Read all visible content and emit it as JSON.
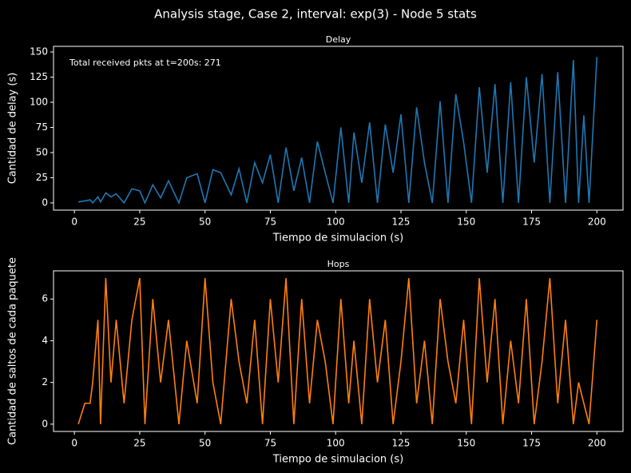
{
  "title": "Analysis stage, Case 2, interval: exp(3) - Node 5 stats",
  "chart_data": [
    {
      "type": "line",
      "title": "Delay",
      "annotation": "Total received pkts at t=200s: 271",
      "x_label": "Tiempo de simulacion (s)",
      "y_label": "Cantidad de delay (s)",
      "x": [
        1.5,
        4,
        6,
        7,
        9,
        10,
        12,
        14,
        16,
        19,
        22,
        25,
        27,
        30,
        33,
        36,
        40,
        43,
        47,
        50,
        53,
        56,
        60,
        63,
        66,
        69,
        72,
        75,
        78,
        81,
        84,
        87,
        90,
        93,
        96,
        99,
        102,
        105,
        107,
        110,
        113,
        116,
        119,
        122,
        125,
        128,
        131,
        134,
        137,
        140,
        143,
        146,
        149,
        152,
        155,
        158,
        161,
        164,
        167,
        170,
        173,
        176,
        179,
        182,
        185,
        188,
        191,
        193,
        195,
        197,
        200
      ],
      "series": [
        {
          "name": "Delay",
          "color": "#1f77b4",
          "values": [
            1,
            2,
            3,
            0,
            6,
            1,
            10,
            6,
            9,
            0,
            14,
            12,
            0,
            18,
            5,
            22,
            0,
            25,
            29,
            0,
            33,
            30,
            8,
            34,
            0,
            40,
            20,
            48,
            0,
            55,
            12,
            45,
            0,
            61,
            30,
            0,
            75,
            0,
            70,
            20,
            80,
            0,
            78,
            30,
            88,
            0,
            95,
            40,
            0,
            101,
            0,
            108,
            60,
            0,
            115,
            30,
            118,
            0,
            120,
            0,
            125,
            40,
            128,
            0,
            130,
            0,
            142,
            0,
            87,
            0,
            145
          ]
        }
      ],
      "xlim": [
        -8,
        210
      ],
      "xticks": [
        0,
        25,
        50,
        75,
        100,
        125,
        150,
        175,
        200
      ],
      "ylim": [
        -7.2,
        155.6
      ],
      "yticks": [
        0,
        25,
        50,
        75,
        100,
        125,
        150
      ]
    },
    {
      "type": "line",
      "title": "Hops",
      "x_label": "Tiempo de simulacion (s)",
      "y_label": "Cantidad de saltos de cada paquete",
      "x": [
        1.5,
        4,
        6,
        7,
        9,
        10,
        12,
        14,
        16,
        19,
        22,
        25,
        27,
        30,
        33,
        36,
        40,
        43,
        47,
        50,
        53,
        56,
        60,
        63,
        66,
        69,
        72,
        75,
        78,
        81,
        84,
        87,
        90,
        93,
        96,
        99,
        102,
        105,
        107,
        110,
        113,
        116,
        119,
        122,
        125,
        128,
        131,
        134,
        137,
        140,
        143,
        146,
        149,
        152,
        155,
        158,
        161,
        164,
        167,
        170,
        173,
        176,
        179,
        182,
        185,
        188,
        191,
        193,
        195,
        197,
        200
      ],
      "series": [
        {
          "name": "Hops",
          "color": "#ff7f0e",
          "values": [
            0,
            1,
            1,
            2,
            5,
            0,
            7,
            2,
            5,
            1,
            5,
            7,
            0,
            6,
            2,
            5,
            0,
            4,
            1,
            7,
            2,
            0,
            6,
            3,
            1,
            5,
            0,
            6,
            2,
            7,
            0,
            6,
            1,
            5,
            3,
            0,
            6,
            1,
            4,
            0,
            6,
            2,
            5,
            0,
            3,
            7,
            1,
            4,
            0,
            6,
            3,
            1,
            5,
            0,
            7,
            2,
            6,
            0,
            4,
            1,
            6,
            0,
            3,
            7,
            1,
            5,
            0,
            2,
            1,
            0,
            5
          ]
        }
      ],
      "xlim": [
        -8,
        210
      ],
      "xticks": [
        0,
        25,
        50,
        75,
        100,
        125,
        150,
        175,
        200
      ],
      "ylim": [
        -0.35,
        7.35
      ],
      "yticks": [
        0,
        2,
        4,
        6
      ]
    }
  ]
}
